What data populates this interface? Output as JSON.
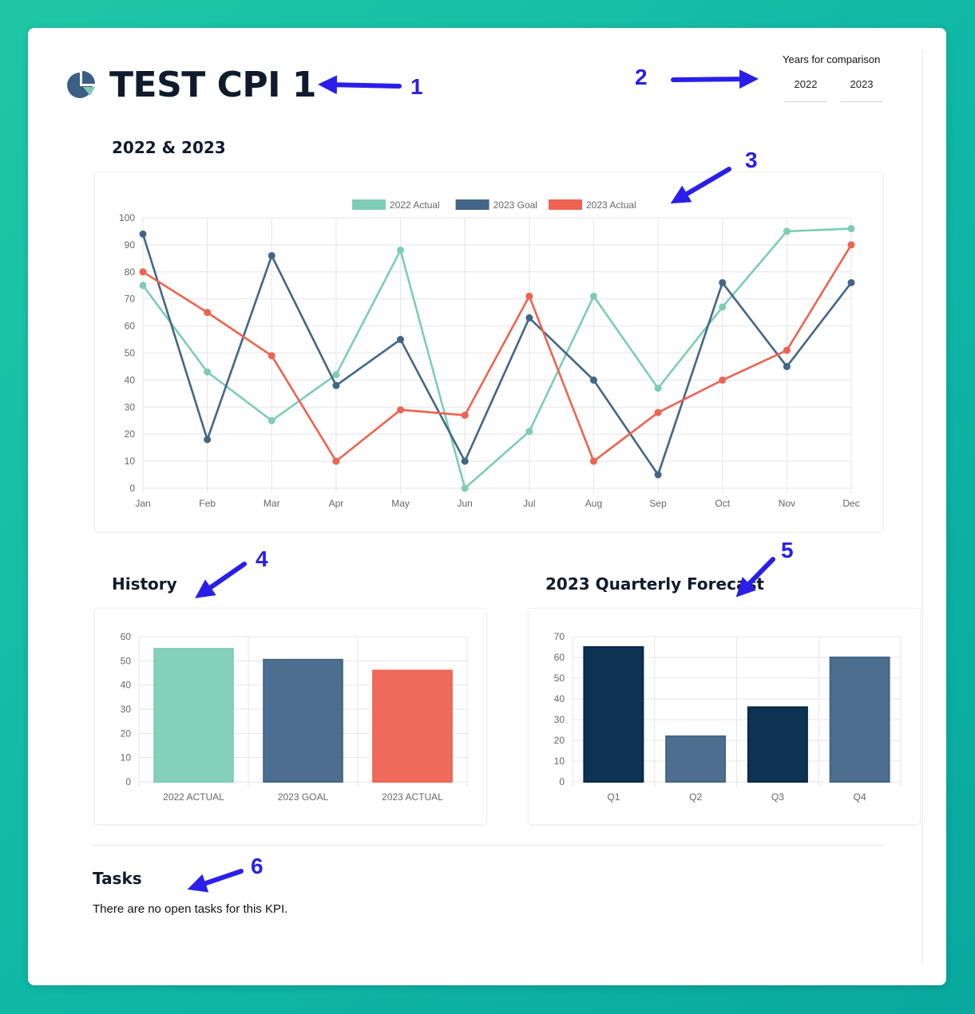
{
  "header": {
    "title": "TEST CPI 1",
    "logo_icon": "pie-chart-icon",
    "years_label": "Years for comparison",
    "years": [
      "2022",
      "2023"
    ]
  },
  "sections": {
    "main_chart_title": "2022 & 2023",
    "history_title": "History",
    "forecast_title": "2023 Quarterly Forecast",
    "tasks_title": "Tasks",
    "tasks_empty": "There are no open tasks for this KPI."
  },
  "annotations": [
    "1",
    "2",
    "3",
    "4",
    "5",
    "6"
  ],
  "colors": {
    "actual_2022": "#7dcdb4",
    "goal_2023": "#436688",
    "actual_2023": "#ee6352",
    "navy": "#012749",
    "annotation": "#2a1fe8"
  },
  "chart_data": [
    {
      "type": "line",
      "title": "2022 & 2023",
      "categories": [
        "Jan",
        "Feb",
        "Mar",
        "Apr",
        "May",
        "Jun",
        "Jul",
        "Aug",
        "Sep",
        "Oct",
        "Nov",
        "Dec"
      ],
      "series": [
        {
          "name": "2022 Actual",
          "color": "#7dcdb4",
          "values": [
            75,
            43,
            25,
            42,
            88,
            0,
            21,
            71,
            37,
            67,
            95,
            96
          ]
        },
        {
          "name": "2023 Goal",
          "color": "#436688",
          "values": [
            94,
            18,
            86,
            38,
            55,
            10,
            63,
            40,
            5,
            76,
            45,
            76
          ]
        },
        {
          "name": "2023 Actual",
          "color": "#ee6352",
          "values": [
            80,
            65,
            49,
            10,
            29,
            27,
            71,
            10,
            28,
            40,
            51,
            90
          ]
        }
      ],
      "ylim": [
        0,
        100
      ],
      "yticks": [
        "0",
        "10",
        "20",
        "30",
        "40",
        "50",
        "60",
        "70",
        "80",
        "90",
        "100"
      ],
      "legend": "top",
      "grid": true
    },
    {
      "type": "bar",
      "title": "History",
      "categories": [
        "2022 ACTUAL",
        "2023 GOAL",
        "2023 ACTUAL"
      ],
      "values": [
        55,
        50.5,
        46
      ],
      "colors": [
        "#7dcdb4",
        "#436688",
        "#ee6352"
      ],
      "ylim": [
        0,
        60
      ],
      "yticks": [
        "0",
        "10",
        "20",
        "30",
        "40",
        "50",
        "60"
      ],
      "grid": true
    },
    {
      "type": "bar",
      "title": "2023 Quarterly Forecast",
      "categories": [
        "Q1",
        "Q2",
        "Q3",
        "Q4"
      ],
      "values": [
        65,
        22,
        36,
        60
      ],
      "colors": [
        "#012749",
        "#436688",
        "#012749",
        "#436688"
      ],
      "ylim": [
        0,
        70
      ],
      "yticks": [
        "0",
        "10",
        "20",
        "30",
        "40",
        "50",
        "60",
        "70"
      ],
      "grid": true
    }
  ]
}
